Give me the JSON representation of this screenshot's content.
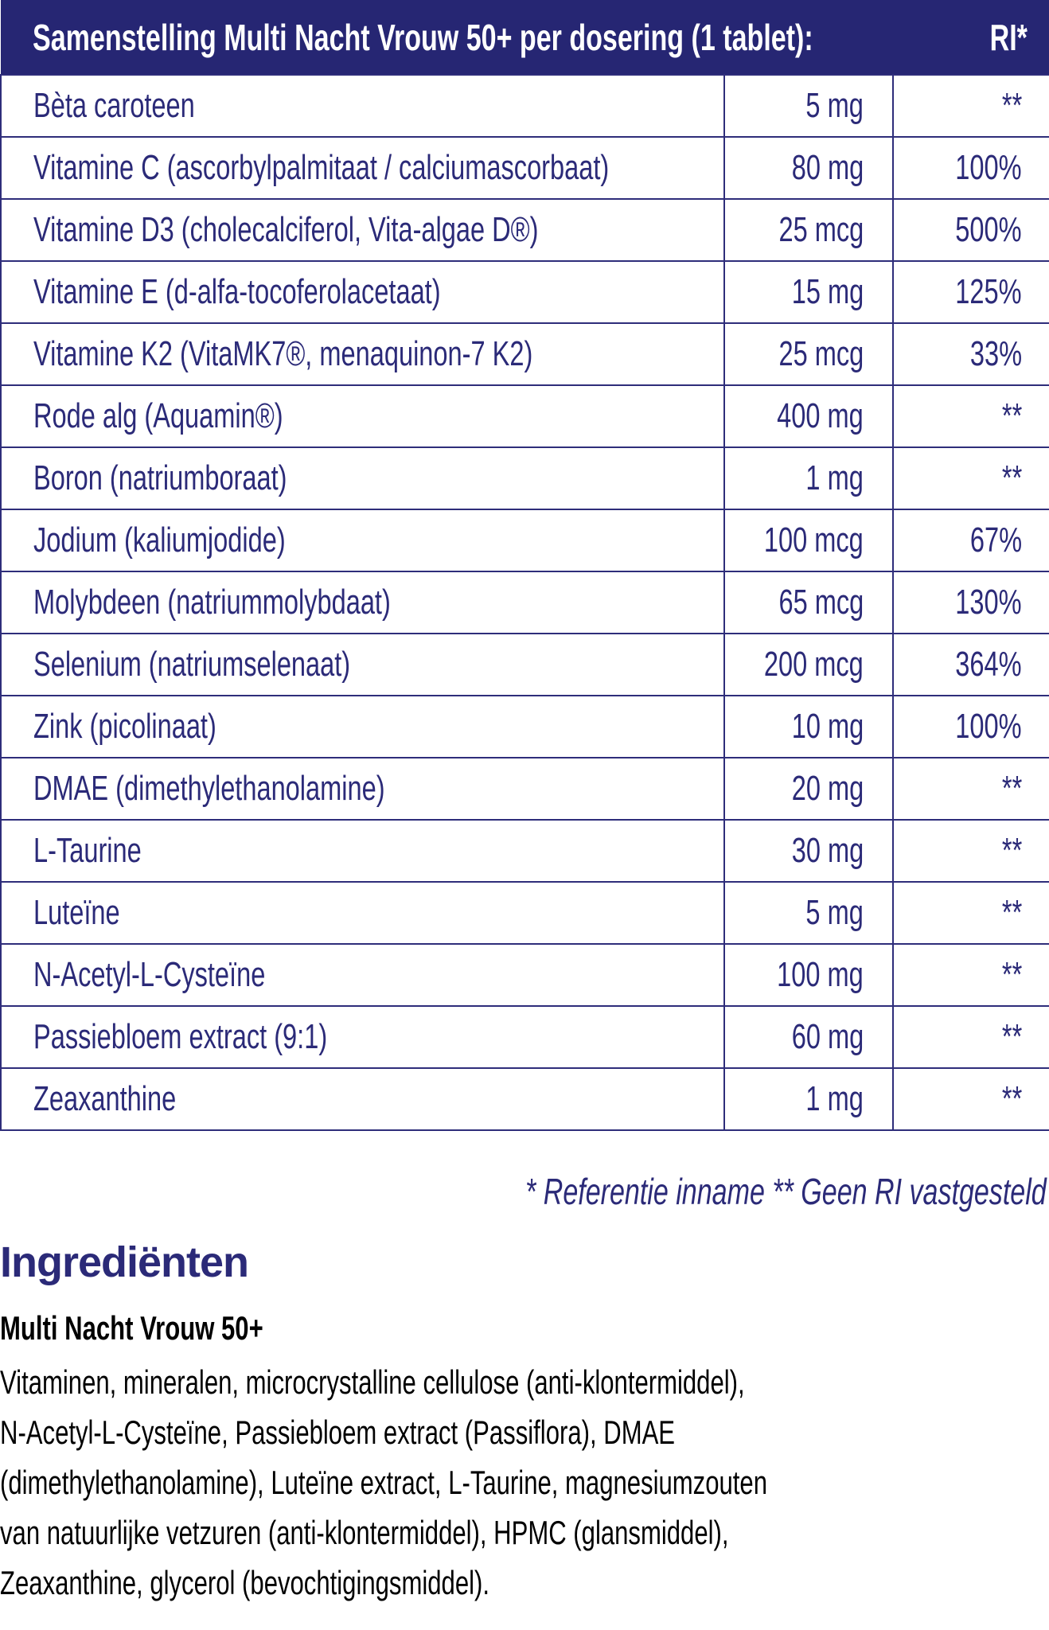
{
  "table": {
    "title": "Samenstelling Multi Nacht Vrouw 50+ per dosering (1 tablet):",
    "ri_header": "RI*",
    "rows": [
      {
        "name": "Bèta caroteen",
        "amount": "5 mg",
        "ri": "**"
      },
      {
        "name": "Vitamine C (ascorbylpalmitaat / calciumascorbaat)",
        "amount": "80 mg",
        "ri": "100%"
      },
      {
        "name": "Vitamine D3 (cholecalciferol, Vita-algae D®)",
        "amount": "25 mcg",
        "ri": "500%"
      },
      {
        "name": "Vitamine E (d-alfa-tocoferolacetaat)",
        "amount": "15 mg",
        "ri": "125%"
      },
      {
        "name": "Vitamine K2 (VitaMK7®, menaquinon-7 K2)",
        "amount": "25 mcg",
        "ri": "33%"
      },
      {
        "name": "Rode alg (Aquamin®)",
        "amount": "400 mg",
        "ri": "**"
      },
      {
        "name": "Boron (natriumboraat)",
        "amount": "1 mg",
        "ri": "**"
      },
      {
        "name": "Jodium (kaliumjodide)",
        "amount": "100 mcg",
        "ri": "67%"
      },
      {
        "name": "Molybdeen (natriummolybdaat)",
        "amount": "65 mcg",
        "ri": "130%"
      },
      {
        "name": "Selenium (natriumselenaat)",
        "amount": "200 mcg",
        "ri": "364%"
      },
      {
        "name": "Zink (picolinaat)",
        "amount": "10 mg",
        "ri": "100%"
      },
      {
        "name": "DMAE (dimethylethanolamine)",
        "amount": "20 mg",
        "ri": "**"
      },
      {
        "name": "L-Taurine",
        "amount": "30 mg",
        "ri": "**"
      },
      {
        "name": "Luteïne",
        "amount": "5 mg",
        "ri": "**"
      },
      {
        "name": "N-Acetyl-L-Cysteïne",
        "amount": "100 mg",
        "ri": "**"
      },
      {
        "name": "Passiebloem extract (9:1)",
        "amount": "60 mg",
        "ri": "**"
      },
      {
        "name": "Zeaxanthine",
        "amount": "1 mg",
        "ri": "**"
      }
    ]
  },
  "footnote": "* Referentie inname  ** Geen RI vastgesteld",
  "ingredients": {
    "title": "Ingrediënten",
    "product": "Multi Nacht Vrouw 50+",
    "lines": [
      "Vitaminen, mineralen, microcrystalline cellulose (anti-klontermiddel),",
      "N-Acetyl-L-Cysteïne, Passiebloem extract (Passiflora), DMAE",
      "(dimethylethanolamine), Luteïne extract, L-Taurine, magnesiumzouten",
      "van natuurlijke vetzuren (anti-klontermiddel), HPMC (glansmiddel),",
      "Zeaxanthine, glycerol (bevochtigingsmiddel)."
    ]
  },
  "colors": {
    "header_bg": "#262673",
    "text": "#2b2a78"
  }
}
